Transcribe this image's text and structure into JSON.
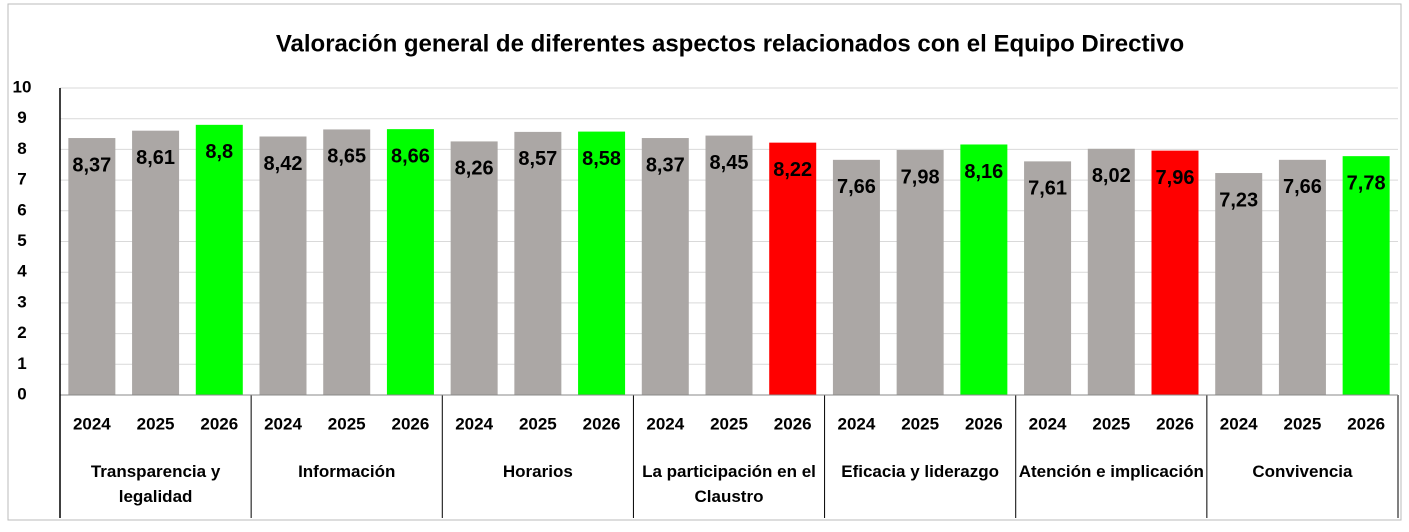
{
  "chart_data": {
    "type": "bar",
    "title": "Valoración general de diferentes aspectos relacionados con el Equipo Directivo",
    "ylim": [
      0,
      10
    ],
    "yticks": [
      0,
      1,
      2,
      3,
      4,
      5,
      6,
      7,
      8,
      9,
      10
    ],
    "grid": true,
    "groups": [
      {
        "name": "Transparencia y legalidad",
        "categories": [
          "2024",
          "2025",
          "2026"
        ],
        "values": [
          8.37,
          8.61,
          8.8
        ],
        "value_labels": [
          "8,37",
          "8,61",
          "8,8"
        ],
        "colors": [
          "#aba7a5",
          "#aba7a5",
          "#00ff00"
        ]
      },
      {
        "name": "Información",
        "categories": [
          "2024",
          "2025",
          "2026"
        ],
        "values": [
          8.42,
          8.65,
          8.66
        ],
        "value_labels": [
          "8,42",
          "8,65",
          "8,66"
        ],
        "colors": [
          "#aba7a5",
          "#aba7a5",
          "#00ff00"
        ]
      },
      {
        "name": "Horarios",
        "categories": [
          "2024",
          "2025",
          "2026"
        ],
        "values": [
          8.26,
          8.57,
          8.58
        ],
        "value_labels": [
          "8,26",
          "8,57",
          "8,58"
        ],
        "colors": [
          "#aba7a5",
          "#aba7a5",
          "#00ff00"
        ]
      },
      {
        "name": "La participación en el Claustro",
        "categories": [
          "2024",
          "2025",
          "2026"
        ],
        "values": [
          8.37,
          8.45,
          8.22
        ],
        "value_labels": [
          "8,37",
          "8,45",
          "8,22"
        ],
        "colors": [
          "#aba7a5",
          "#aba7a5",
          "#ff0000"
        ]
      },
      {
        "name": "Eficacia y liderazgo",
        "categories": [
          "2024",
          "2025",
          "2026"
        ],
        "values": [
          7.66,
          7.98,
          8.16
        ],
        "value_labels": [
          "7,66",
          "7,98",
          "8,16"
        ],
        "colors": [
          "#aba7a5",
          "#aba7a5",
          "#00ff00"
        ]
      },
      {
        "name": "Atención e implicación",
        "categories": [
          "2024",
          "2025",
          "2026"
        ],
        "values": [
          7.61,
          8.02,
          7.96
        ],
        "value_labels": [
          "7,61",
          "8,02",
          "7,96"
        ],
        "colors": [
          "#aba7a5",
          "#aba7a5",
          "#ff0000"
        ]
      },
      {
        "name": "Convivencia",
        "categories": [
          "2024",
          "2025",
          "2026"
        ],
        "values": [
          7.23,
          7.66,
          7.78
        ],
        "value_labels": [
          "7,23",
          "7,66",
          "7,78"
        ],
        "colors": [
          "#aba7a5",
          "#aba7a5",
          "#00ff00"
        ]
      }
    ]
  }
}
